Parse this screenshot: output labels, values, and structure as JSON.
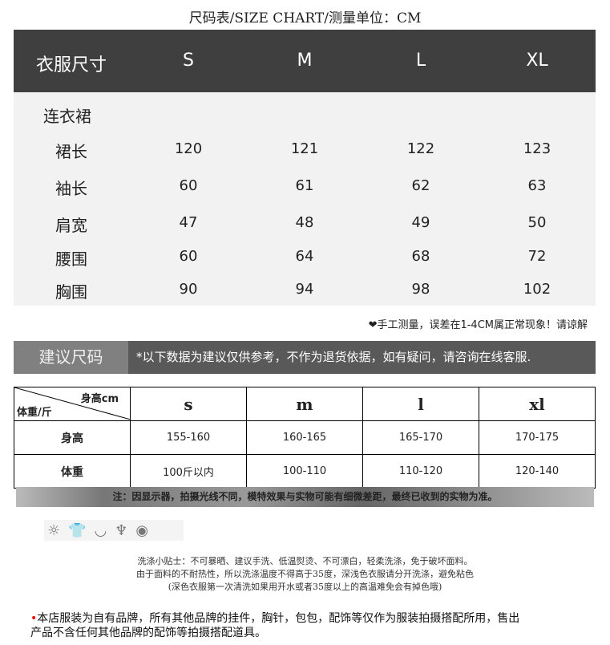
{
  "title": "尺码表/SIZE CHART/测量单位：CM",
  "size_chart": {
    "header": [
      "衣服尺寸",
      "S",
      "M",
      "L",
      "XL"
    ],
    "category": "连衣裙",
    "rows": [
      {
        "label": "裙长",
        "values": [
          "120",
          "121",
          "122",
          "123"
        ]
      },
      {
        "label": "袖长",
        "values": [
          "60",
          "61",
          "62",
          "63"
        ]
      },
      {
        "label": "肩宽",
        "values": [
          "47",
          "48",
          "49",
          "50"
        ]
      },
      {
        "label": "腰围",
        "values": [
          "60",
          "64",
          "68",
          "72"
        ]
      },
      {
        "label": "胸围",
        "values": [
          "90",
          "94",
          "98",
          "102"
        ]
      }
    ]
  },
  "measure_note": "❤手工测量，误差在1-4CM属正常现象！请谅解",
  "banner": {
    "label": "建议尺码",
    "text": "*以下数据为建议仅供参考，不作为退货依据，如有疑问，请咨询在线客服."
  },
  "suggest_table": {
    "corner_top": "身高cm",
    "corner_bottom": "体重/斤",
    "sizes": [
      "s",
      "m",
      "l",
      "xl"
    ],
    "rows": [
      {
        "label": "身高",
        "values": [
          "155-160",
          "160-165",
          "165-170",
          "170-175"
        ]
      },
      {
        "label": "体重",
        "values": [
          "100斤以内",
          "100-110",
          "110-120",
          "120-140"
        ]
      }
    ]
  },
  "disclaimer": "注：因显示器，拍摄光线不同，模特效果与实物可能有细微差距，最终已收到的实物为准。",
  "care_icons": [
    "sun-icon",
    "shirt-icon",
    "wash-30-icon",
    "hand-wash-icon",
    "iron-icon"
  ],
  "care_tips": [
    "洗涤小贴士：不可暴晒、建议手洗、低温熨烫、不可漂白，轻柔洗涤，免于破坏面料。",
    "由于面料的不耐热性，所以洗涤温度不得高于35度，深浅色衣服请分开洗涤，避免粘色",
    "(深色衣服第一次清洗如果用开水或者35度以上的高温难免会有掉色哦)"
  ],
  "footer": [
    "本店服装为自有品牌，所有其他品牌的挂件，胸针，包包，配饰等仅作为服装拍摄搭配所用，售出",
    "产品不含任何其他品牌的配饰等拍摄搭配道具。"
  ]
}
